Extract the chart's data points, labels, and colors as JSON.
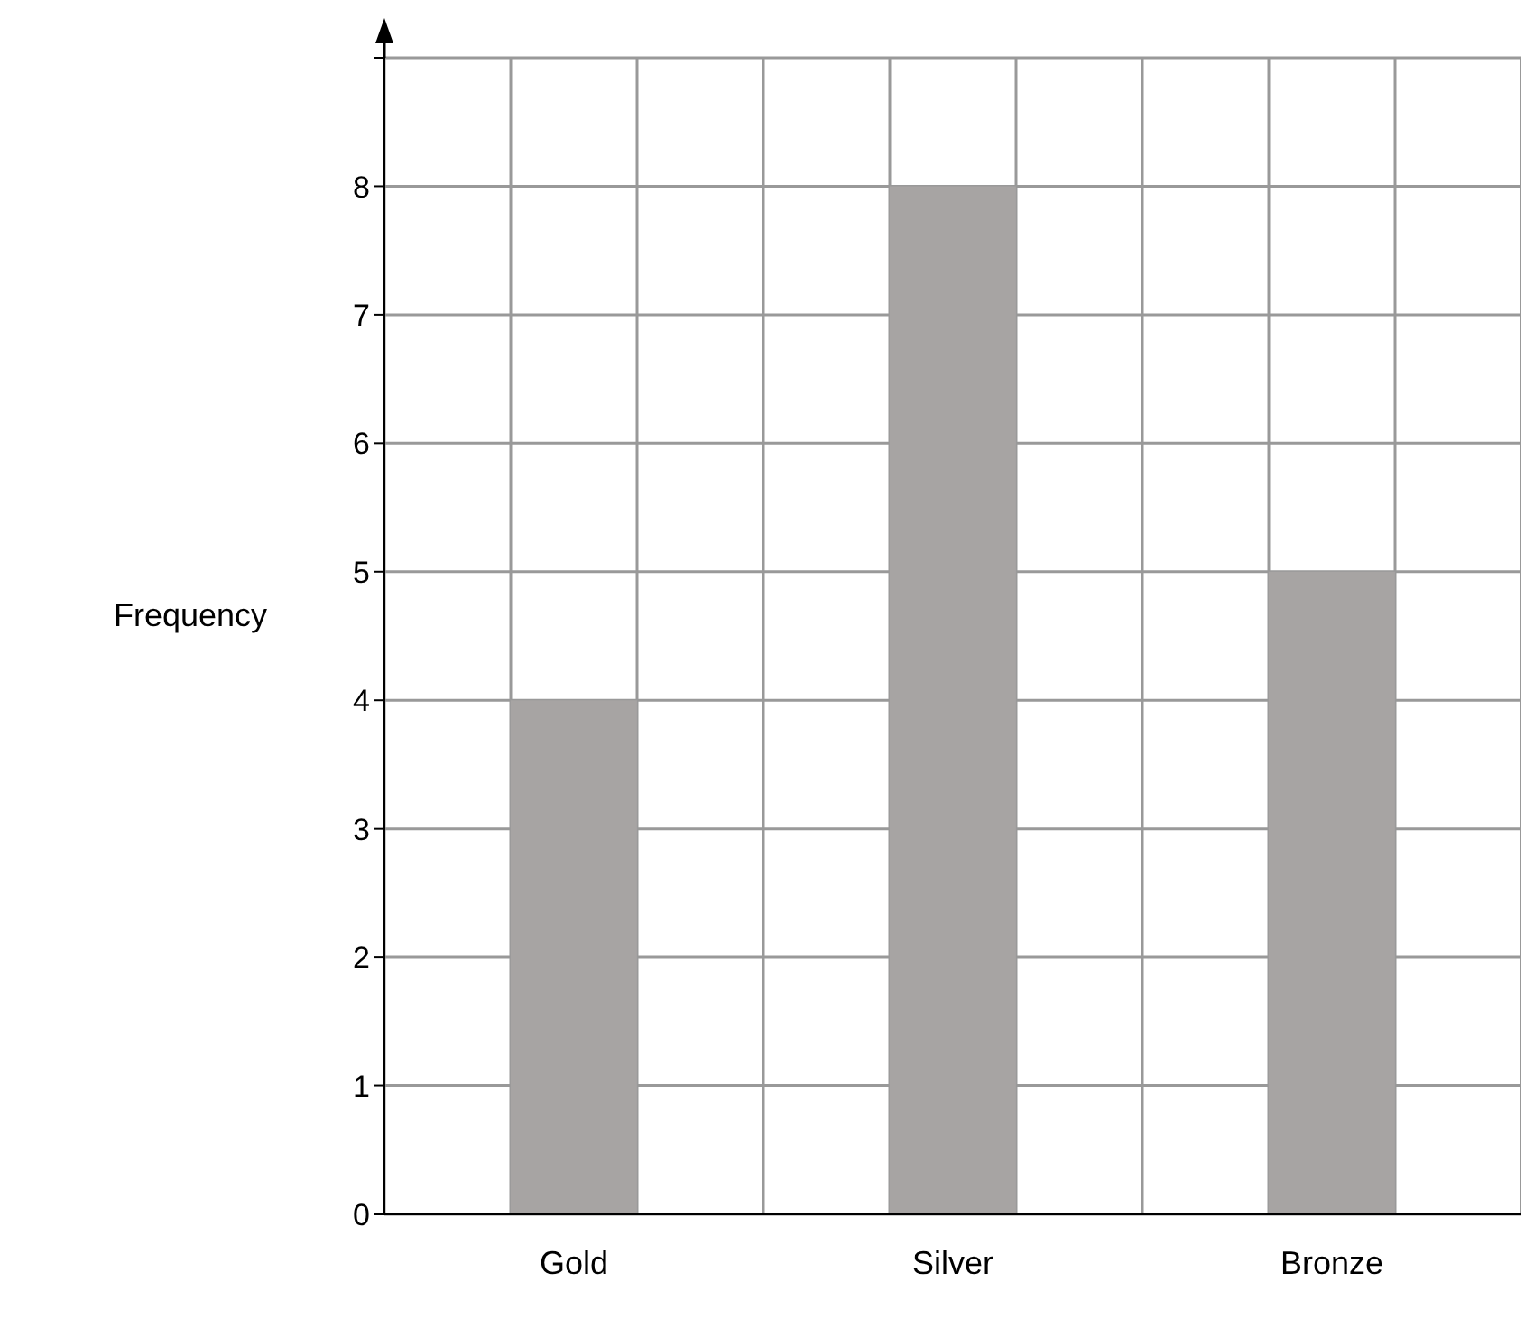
{
  "chart_data": {
    "type": "bar",
    "ylabel": "Frequency",
    "categories": [
      "Gold",
      "Silver",
      "Bronze"
    ],
    "values": [
      4,
      8,
      5
    ],
    "color": "#a7a4a3",
    "ylim": [
      0,
      9
    ],
    "yticks": [
      0,
      1,
      2,
      3,
      4,
      5,
      6,
      7,
      8,
      {
        "value": 9,
        "label": null
      }
    ],
    "grid": true
  }
}
